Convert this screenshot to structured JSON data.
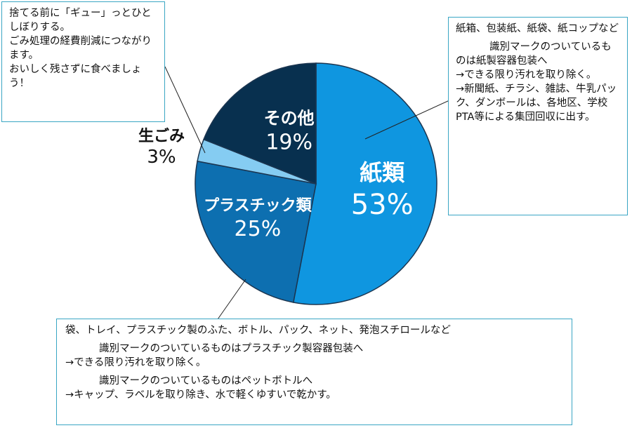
{
  "chart_data": {
    "type": "pie",
    "slices": [
      {
        "name": "紙類",
        "value": 53,
        "label": "53%",
        "color": "#0f96e0"
      },
      {
        "name": "プラスチック類",
        "value": 25,
        "label": "25%",
        "color": "#0d6fb0"
      },
      {
        "name": "生ごみ",
        "value": 3,
        "label": "3%",
        "color": "#85ccf2"
      },
      {
        "name": "その他",
        "value": 19,
        "label": "19%",
        "color": "#08304f"
      }
    ]
  },
  "notes": {
    "food_waste": [
      "捨てる前に「ギュー」っとひとしぼりする。",
      "ごみ処理の経費削減につながります。",
      "おいしく残さずに食べましょう！"
    ],
    "paper": {
      "items": "紙箱、包装紙、紙袋、紙コップなど",
      "mark_line": "識別マークのついているものは紙製容器包装へ",
      "clean_line": "→できる限り汚れを取り除く。",
      "collect_line": "→新聞紙、チラシ、雑誌、牛乳パック、ダンボールは、各地区、学校PTA等による集団回収に出す。"
    },
    "plastic": {
      "items": "袋、トレイ、プラスチック製のふた、ボトル、パック、ネット、発泡スチロールなど",
      "mark_line": "識別マークのついているものはプラスチック製容器包装へ",
      "clean_line": "→できる限り汚れを取り除く。",
      "pet_line": "識別マークのついているものはペットボトルへ",
      "pet_action": "→キャップ、ラベルを取り除き、水で軽くゆすいで乾かす。"
    }
  }
}
